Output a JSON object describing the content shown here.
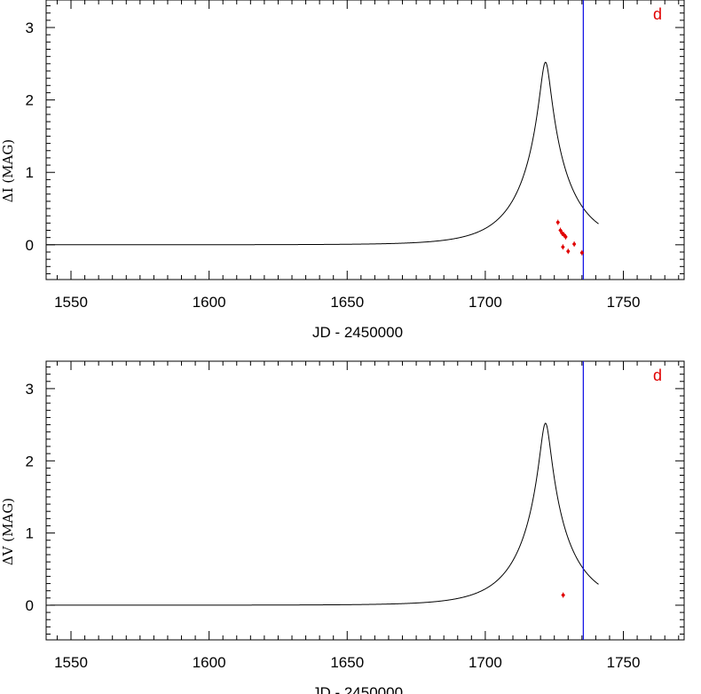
{
  "chart_data": [
    {
      "type": "line",
      "panel_label": "d",
      "xlabel": "JD - 2450000",
      "ylabel": "ΔI (MAG)",
      "xlim": [
        1541,
        1772
      ],
      "ylim": [
        -0.48,
        3.38
      ],
      "x_ticks": [
        1550,
        1600,
        1650,
        1700,
        1750
      ],
      "y_ticks": [
        0,
        1,
        2,
        3
      ],
      "vline_x": 1735.5,
      "model": {
        "t0": 1721.8,
        "u0": 0.0985,
        "tE": 18.3,
        "x_start": 1541,
        "x_end": 1741
      },
      "observations": [
        {
          "x": 1726.3,
          "y": 0.31
        },
        {
          "x": 1727.2,
          "y": 0.2
        },
        {
          "x": 1727.8,
          "y": 0.16
        },
        {
          "x": 1728.4,
          "y": 0.14
        },
        {
          "x": 1729.1,
          "y": 0.11
        },
        {
          "x": 1728.1,
          "y": -0.03
        },
        {
          "x": 1730.0,
          "y": -0.09
        },
        {
          "x": 1732.2,
          "y": 0.01
        },
        {
          "x": 1735.0,
          "y": -0.11
        }
      ]
    },
    {
      "type": "line",
      "panel_label": "d",
      "xlabel": "JD - 2450000",
      "ylabel": "ΔV (MAG)",
      "xlim": [
        1541,
        1772
      ],
      "ylim": [
        -0.48,
        3.38
      ],
      "x_ticks": [
        1550,
        1600,
        1650,
        1700,
        1750
      ],
      "y_ticks": [
        0,
        1,
        2,
        3
      ],
      "vline_x": 1735.5,
      "model": {
        "t0": 1721.8,
        "u0": 0.0985,
        "tE": 18.3,
        "x_start": 1541,
        "x_end": 1741
      },
      "observations": [
        {
          "x": 1728.2,
          "y": 0.14
        }
      ]
    }
  ]
}
